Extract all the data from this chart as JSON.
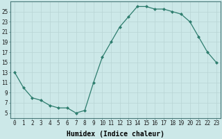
{
  "x": [
    0,
    1,
    2,
    3,
    4,
    5,
    6,
    7,
    8,
    9,
    10,
    11,
    12,
    13,
    14,
    15,
    16,
    17,
    18,
    19,
    20,
    21,
    22,
    23
  ],
  "y": [
    13,
    10,
    8,
    7.5,
    6.5,
    6,
    6,
    5,
    5.5,
    11,
    16,
    19,
    22,
    24,
    26,
    26,
    25.5,
    25.5,
    25,
    24.5,
    23,
    20,
    17,
    15
  ],
  "line_color": "#2e7d6e",
  "marker": "D",
  "marker_size": 2.0,
  "bg_color": "#cce8e8",
  "grid_color": "#b8d4d4",
  "xlabel": "Humidex (Indice chaleur)",
  "xlim": [
    -0.5,
    23.5
  ],
  "ylim": [
    4,
    27
  ],
  "yticks": [
    5,
    7,
    9,
    11,
    13,
    15,
    17,
    19,
    21,
    23,
    25
  ],
  "xticks": [
    0,
    1,
    2,
    3,
    4,
    5,
    6,
    7,
    8,
    9,
    10,
    11,
    12,
    13,
    14,
    15,
    16,
    17,
    18,
    19,
    20,
    21,
    22,
    23
  ],
  "tick_fontsize": 5.5,
  "xlabel_fontsize": 7.0,
  "linewidth": 0.9
}
